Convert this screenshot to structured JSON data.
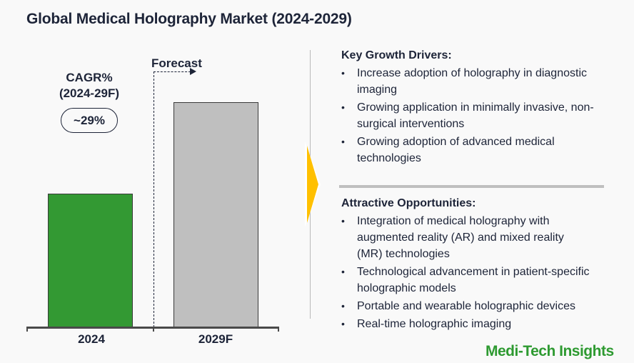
{
  "header": {
    "title": "Global Medical Holography Market (2024-2029)"
  },
  "cagr": {
    "label_line1": "CAGR%",
    "label_line2": "(2024-29F)",
    "value": "~29%"
  },
  "forecast": {
    "label": "Forecast"
  },
  "colors": {
    "bar_2024": "#339933",
    "bar_2029F": "#bfbfbf",
    "accent_arrow": "#ffc000",
    "text": "#1d2438",
    "brand": "#2e9a31"
  },
  "chart_data": {
    "type": "bar",
    "title": "Global Medical Holography Market (2024-2029)",
    "categories": [
      "2024",
      "2029F"
    ],
    "values": [
      1.0,
      1.69
    ],
    "value_note": "Relative bar heights only; no numeric axis or data labels shown",
    "xlabel": "",
    "ylabel": "",
    "annotations": [
      "CAGR% (2024-29F) ~29%",
      "Forecast"
    ],
    "grid": false,
    "legend": null
  },
  "drivers": {
    "heading": "Key Growth Drivers:",
    "items": [
      "Increase adoption of holography in diagnostic imaging",
      "Growing application in minimally invasive, non-surgical interventions",
      "Growing adoption of advanced medical technologies"
    ]
  },
  "opportunities": {
    "heading": "Attractive Opportunities:",
    "items": [
      "Integration of medical holography with augmented reality (AR) and mixed reality (MR) technologies",
      "Technological advancement in patient-specific holographic models",
      "Portable and wearable holographic devices",
      "Real-time holographic imaging"
    ]
  },
  "bullet_glyph": "•",
  "brand": {
    "name": "Medi-Tech Insights"
  }
}
